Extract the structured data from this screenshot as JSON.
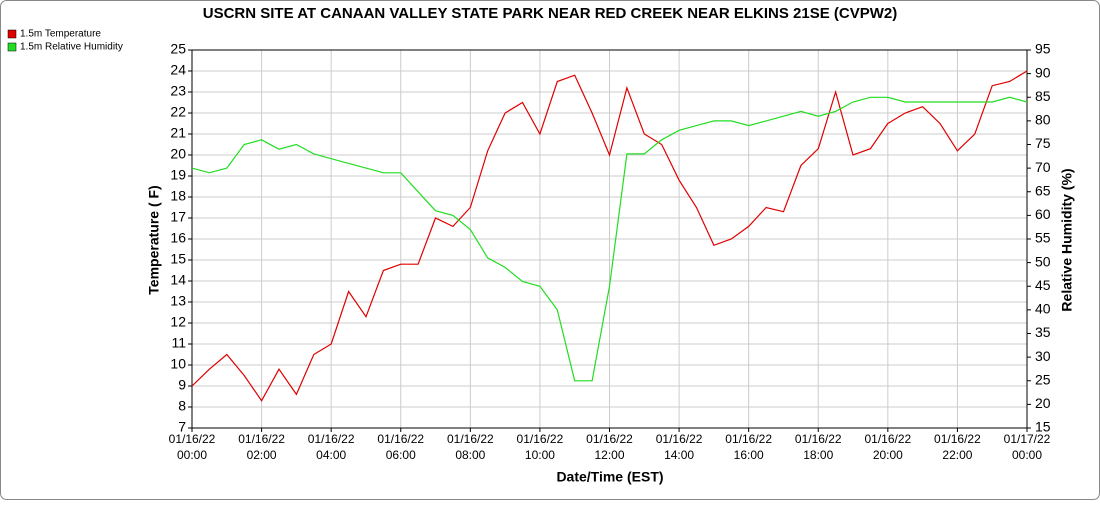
{
  "chart_data": {
    "type": "line",
    "title": "USCRN SITE AT CANAAN VALLEY STATE PARK NEAR RED CREEK NEAR ELKINS 21SE (CVPW2)",
    "xlabel": "Date/Time (EST)",
    "ylabel": "Temperature ( F)",
    "y2label": "Relative Humidity (%)",
    "x": [
      "01/16/22 00:00",
      "01/16/22 00:30",
      "01/16/22 01:00",
      "01/16/22 01:30",
      "01/16/22 02:00",
      "01/16/22 02:30",
      "01/16/22 03:00",
      "01/16/22 03:30",
      "01/16/22 04:00",
      "01/16/22 04:30",
      "01/16/22 05:00",
      "01/16/22 05:30",
      "01/16/22 06:00",
      "01/16/22 06:30",
      "01/16/22 07:00",
      "01/16/22 07:30",
      "01/16/22 08:00",
      "01/16/22 08:30",
      "01/16/22 09:00",
      "01/16/22 09:30",
      "01/16/22 10:00",
      "01/16/22 10:30",
      "01/16/22 11:00",
      "01/16/22 11:30",
      "01/16/22 12:00",
      "01/16/22 12:30",
      "01/16/22 13:00",
      "01/16/22 13:30",
      "01/16/22 14:00",
      "01/16/22 14:30",
      "01/16/22 15:00",
      "01/16/22 15:30",
      "01/16/22 16:00",
      "01/16/22 16:30",
      "01/16/22 17:00",
      "01/16/22 17:30",
      "01/16/22 18:00",
      "01/16/22 18:30",
      "01/16/22 19:00",
      "01/16/22 19:30",
      "01/16/22 20:00",
      "01/16/22 20:30",
      "01/16/22 21:00",
      "01/16/22 21:30",
      "01/16/22 22:00",
      "01/16/22 22:30",
      "01/16/22 23:00",
      "01/16/22 23:30",
      "01/17/22 00:00"
    ],
    "series": [
      {
        "name": "1.5m Temperature",
        "color": "#e00000",
        "values": [
          9.0,
          9.8,
          10.5,
          9.5,
          8.3,
          9.8,
          8.6,
          10.5,
          11.0,
          13.5,
          12.3,
          14.5,
          14.8,
          14.8,
          17.0,
          16.6,
          17.5,
          20.2,
          22.0,
          22.5,
          21.0,
          23.5,
          23.8,
          22.0,
          20.0,
          23.2,
          21.0,
          20.5,
          18.8,
          17.5,
          15.7,
          16.0,
          16.6,
          17.5,
          17.3,
          19.5,
          20.3,
          23.0,
          20.0,
          20.3,
          21.5,
          22.0,
          22.3,
          21.5,
          20.2,
          21.0,
          23.3,
          23.5,
          24.0
        ]
      },
      {
        "name": "1.5m Relative Humidity",
        "color": "#22dd22",
        "axis": "y2",
        "values": [
          70,
          69,
          70,
          75,
          76,
          74,
          75,
          73,
          72,
          71,
          70,
          69,
          69,
          65,
          61,
          60,
          57,
          51,
          49,
          46,
          45,
          40,
          25,
          25,
          45,
          73,
          73,
          76,
          78,
          79,
          80,
          80,
          79,
          80,
          81,
          82,
          81,
          82,
          84,
          85,
          85,
          84,
          84,
          84,
          84,
          84,
          84,
          85,
          84
        ]
      }
    ],
    "ylim": [
      7,
      25
    ],
    "yticks": [
      7,
      8,
      9,
      10,
      11,
      12,
      13,
      14,
      15,
      16,
      17,
      18,
      19,
      20,
      21,
      22,
      23,
      24,
      25
    ],
    "y2lim": [
      15,
      95
    ],
    "y2ticks": [
      15,
      20,
      25,
      30,
      35,
      40,
      45,
      50,
      55,
      60,
      65,
      70,
      75,
      80,
      85,
      90,
      95
    ],
    "xticks": [
      "01/16/22 00:00",
      "01/16/22 02:00",
      "01/16/22 04:00",
      "01/16/22 06:00",
      "01/16/22 08:00",
      "01/16/22 10:00",
      "01/16/22 12:00",
      "01/16/22 14:00",
      "01/16/22 16:00",
      "01/16/22 18:00",
      "01/16/22 20:00",
      "01/16/22 22:00",
      "01/17/22 00:00"
    ],
    "grid": true,
    "legend": "top-left"
  }
}
